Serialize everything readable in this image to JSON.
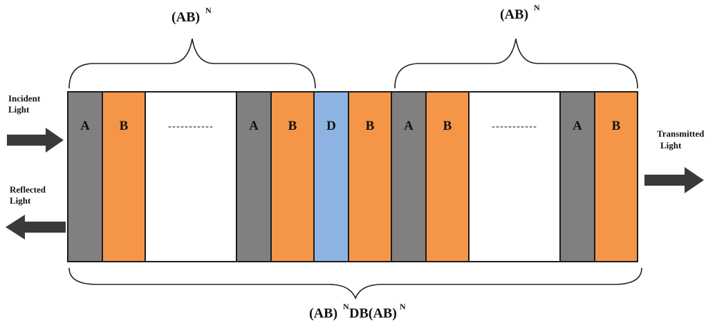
{
  "colors": {
    "layer_A": "#808080",
    "layer_B": "#f59548",
    "layer_D": "#8db3e2",
    "gap": "#ffffff",
    "outline": "#1a1a1a",
    "arrow": "#3a3a3a"
  },
  "layers": [
    {
      "type": "A",
      "label": "A"
    },
    {
      "type": "B",
      "label": "B"
    },
    {
      "type": "gap",
      "label": "-----------"
    },
    {
      "type": "A",
      "label": "A"
    },
    {
      "type": "B",
      "label": "B"
    },
    {
      "type": "D",
      "label": "D"
    },
    {
      "type": "B",
      "label": "B"
    },
    {
      "type": "A",
      "label": "A"
    },
    {
      "type": "B",
      "label": "B"
    },
    {
      "type": "gap",
      "label": "-----------"
    },
    {
      "type": "A",
      "label": "A"
    },
    {
      "type": "B",
      "label": "B"
    }
  ],
  "groups": {
    "left": {
      "base": "(AB)",
      "sup": "N"
    },
    "right": {
      "base": "(AB)",
      "sup": "N"
    }
  },
  "structure": {
    "part1": "(AB)",
    "sup1": "N",
    "part2": "DB(AB)",
    "sup2": "N"
  },
  "labels": {
    "incident_line1": "Incident",
    "incident_line2": "Light",
    "reflected_line1": "Reflected",
    "reflected_line2": "Light",
    "transmitted_line1": "Transmitted",
    "transmitted_line2": "Light"
  }
}
